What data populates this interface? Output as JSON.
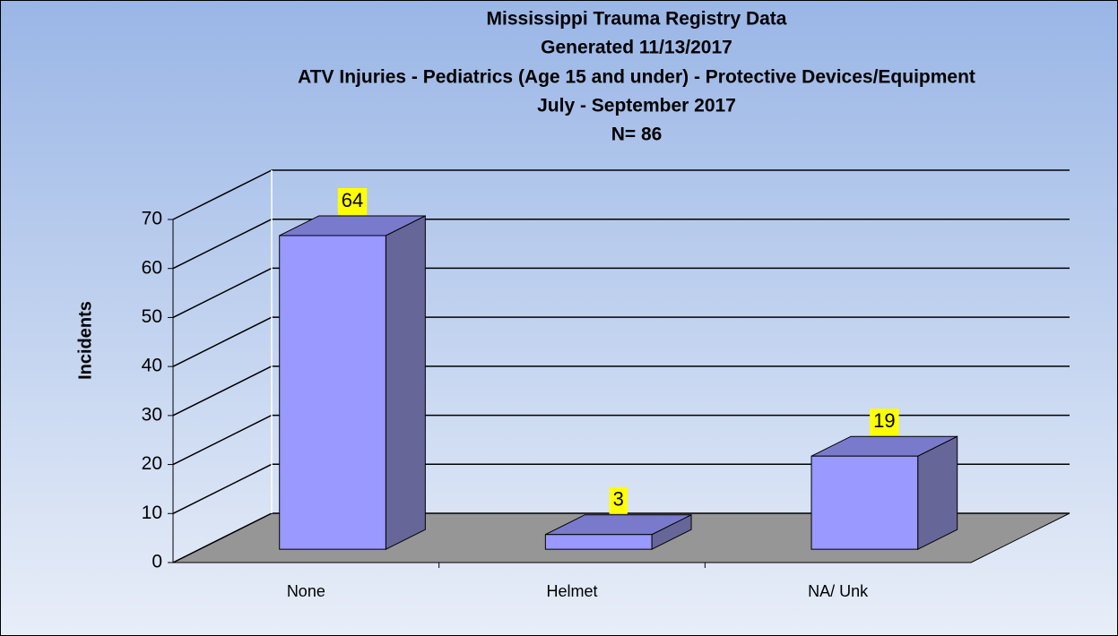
{
  "chart_data": {
    "type": "bar3d",
    "title": [
      "Mississippi Trauma Registry Data",
      "Generated 11/13/2017",
      "ATV Injuries - Pediatrics (Age 15 and under) - Protective Devices/Equipment",
      "July - September  2017",
      "N= 86"
    ],
    "y_label": "Incidents",
    "categories": [
      "None",
      "Helmet",
      "NA/ Unk"
    ],
    "values": [
      64,
      3,
      19
    ],
    "color": "#9999ff",
    "ylim": [
      0,
      70
    ],
    "yticks": [
      0,
      10,
      20,
      30,
      40,
      50,
      60,
      70
    ],
    "grid": true
  }
}
